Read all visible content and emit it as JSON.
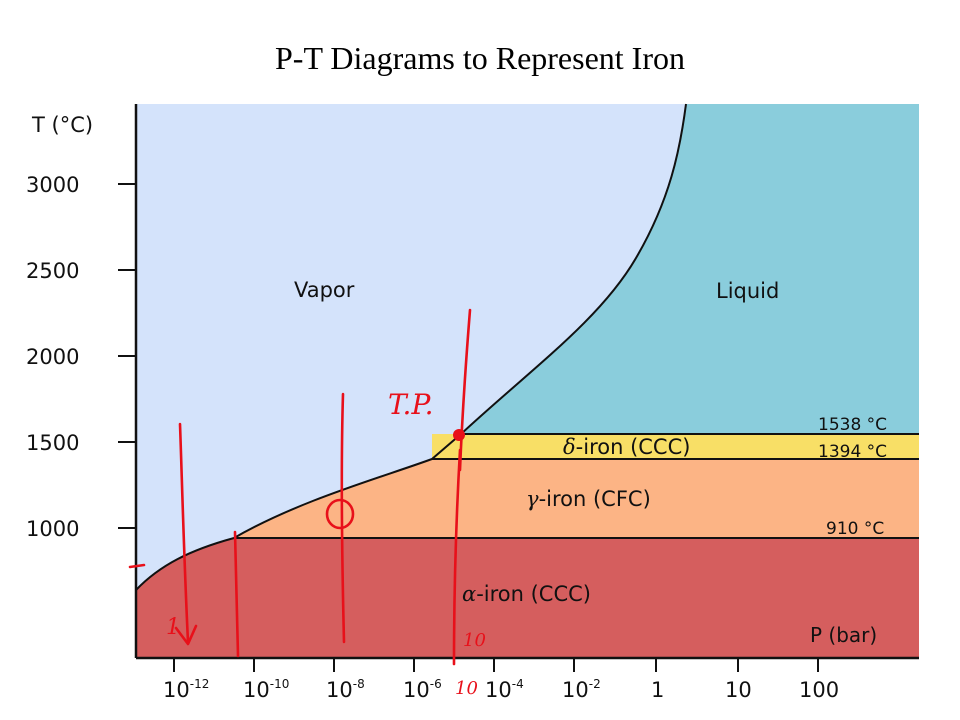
{
  "title": "P-T Diagrams to Represent Iron",
  "axes": {
    "y_label": "T (°C)",
    "x_label": "P (bar)",
    "y_ticks": [
      "3000",
      "2500",
      "2000",
      "1500",
      "1000"
    ],
    "x_ticks": [
      {
        "base": "10",
        "exp": "-12"
      },
      {
        "base": "10",
        "exp": "-10"
      },
      {
        "base": "10",
        "exp": "-8"
      },
      {
        "base": "10",
        "exp": "-6"
      },
      {
        "base": "10",
        "exp": "-4"
      },
      {
        "base": "10",
        "exp": "-2"
      },
      {
        "base": "1",
        "exp": ""
      },
      {
        "base": "10",
        "exp": ""
      },
      {
        "base": "100",
        "exp": ""
      }
    ]
  },
  "regions": {
    "vapor": "Vapor",
    "liquid": "Liquid",
    "delta_greek": "δ",
    "delta_rest": "-iron (CCC)",
    "gamma_greek": "γ",
    "gamma_rest": "-iron (CFC)",
    "alpha_greek": "α",
    "alpha_rest": "-iron (CCC)"
  },
  "temperatures": {
    "t1538": "1538 °C",
    "t1394": "1394 °C",
    "t910": "910 °C"
  },
  "colors": {
    "vapor": "#d4e3fb",
    "liquid": "#8acddc",
    "delta": "#f8df66",
    "gamma": "#fcb485",
    "alpha": "#d55e5e",
    "annotation": "#e8101a"
  },
  "annotations": {
    "triple_point": "T.P.",
    "low_pressure_mark": "1",
    "p_label_a": "10",
    "p_label_b": "10"
  }
}
